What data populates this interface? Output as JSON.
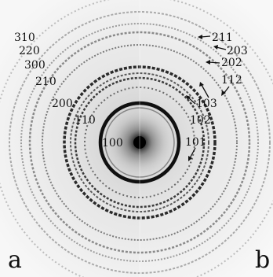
{
  "figure": {
    "panel_left": "a",
    "panel_right": "b",
    "ring_labels": {
      "r310": "310",
      "r220": "220",
      "r300": "300",
      "r210": "210",
      "r200": "200",
      "r110": "110",
      "r100": "100",
      "r211": "211",
      "r203": "203",
      "r202": "202",
      "r112": "112",
      "r103": "103",
      "r102": "102",
      "r101": "101"
    }
  }
}
